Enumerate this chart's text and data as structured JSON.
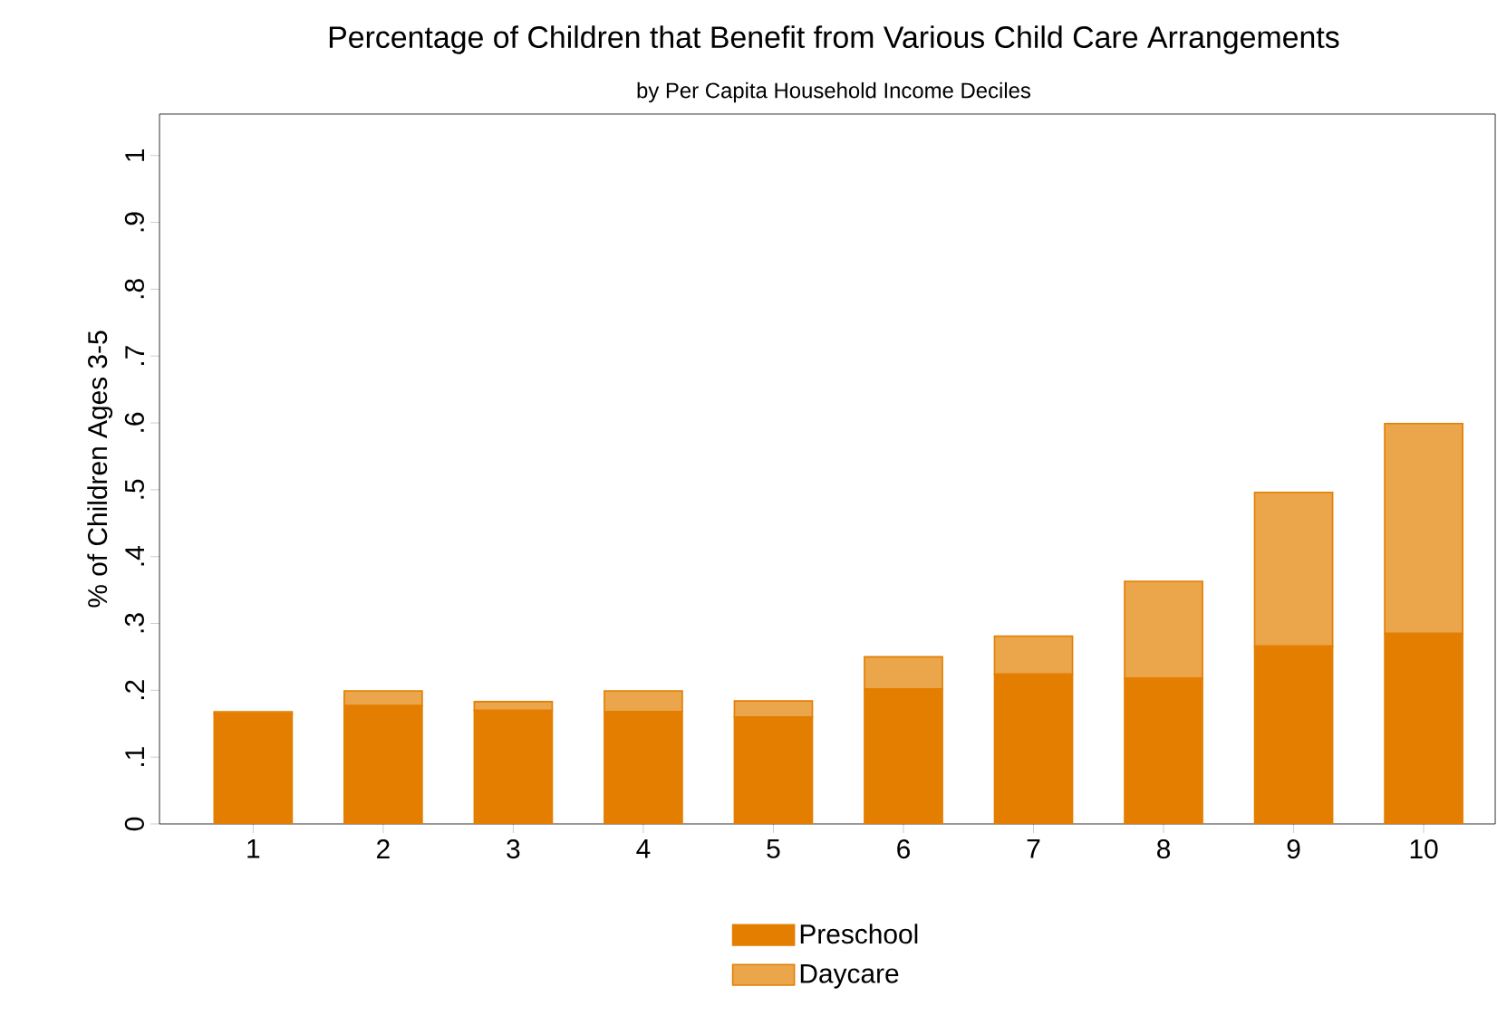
{
  "chart_data": {
    "type": "bar",
    "stacked": true,
    "title": "Percentage of Children that Benefit from Various Child Care Arrangements",
    "subtitle": "by Per Capita Household Income Deciles",
    "ylabel": "% of Children Ages 3-5",
    "categories": [
      "1",
      "2",
      "3",
      "4",
      "5",
      "6",
      "7",
      "8",
      "9",
      "10"
    ],
    "series": [
      {
        "name": "Preschool",
        "color": "#e37e00",
        "values": [
          0.165,
          0.177,
          0.17,
          0.168,
          0.16,
          0.202,
          0.224,
          0.218,
          0.266,
          0.285
        ]
      },
      {
        "name": "Daycare",
        "color": "#eba54a",
        "values": [
          0.003,
          0.022,
          0.013,
          0.031,
          0.024,
          0.048,
          0.057,
          0.145,
          0.23,
          0.314
        ]
      }
    ],
    "ylim": [
      0,
      1.062
    ],
    "yticks": [
      0,
      {
        "value": 0.1,
        "label": ".1"
      },
      {
        "value": 0.2,
        "label": ".2"
      },
      {
        "value": 0.3,
        "label": ".3"
      },
      {
        "value": 0.4,
        "label": ".4"
      },
      {
        "value": 0.5,
        "label": ".5"
      },
      {
        "value": 0.6,
        "label": ".6"
      },
      {
        "value": 0.7,
        "label": ".7"
      },
      {
        "value": 0.8,
        "label": ".8"
      },
      {
        "value": 0.9,
        "label": ".9"
      },
      1
    ],
    "grid": false,
    "legend": "bottom"
  }
}
